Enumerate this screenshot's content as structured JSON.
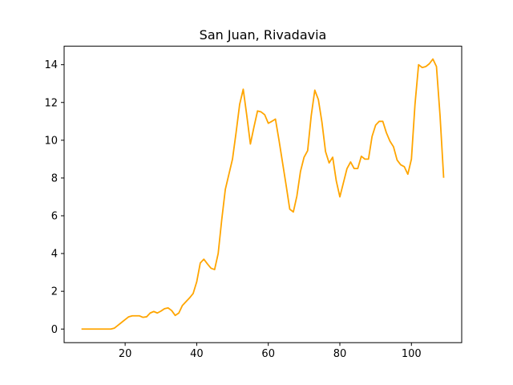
{
  "chart_data": {
    "type": "line",
    "title": "San Juan, Rivadavia",
    "xlabel": "",
    "ylabel": "",
    "xlim": [
      2.95,
      114.05
    ],
    "ylim": [
      -0.72,
      14.98
    ],
    "xticks": [
      20,
      40,
      60,
      80,
      100
    ],
    "yticks": [
      0,
      2,
      4,
      6,
      8,
      10,
      12,
      14
    ],
    "grid": false,
    "line_color": "#ffa500",
    "series": [
      {
        "x": [
          8,
          9,
          10,
          11,
          12,
          13,
          14,
          15,
          16,
          17,
          18,
          19,
          20,
          21,
          22,
          23,
          24,
          25,
          26,
          27,
          28,
          29,
          30,
          31,
          32,
          33,
          34,
          35,
          36,
          37,
          38,
          39,
          40,
          41,
          42,
          43,
          44,
          45,
          46,
          47,
          48,
          49,
          50,
          51,
          52,
          53,
          54,
          55,
          56,
          57,
          58,
          59,
          60,
          61,
          62,
          63,
          64,
          65,
          66,
          67,
          68,
          69,
          70,
          71,
          72,
          73,
          74,
          75,
          76,
          77,
          78,
          79,
          80,
          81,
          82,
          83,
          84,
          85,
          86,
          87,
          88,
          89,
          90,
          91,
          92,
          93,
          94,
          95,
          96,
          97,
          98,
          99,
          100,
          101,
          102,
          103,
          104,
          105,
          106,
          107,
          108,
          109
        ],
        "y": [
          0,
          0,
          0,
          0,
          0,
          0,
          0,
          0,
          0,
          0.05,
          0.2,
          0.35,
          0.5,
          0.65,
          0.7,
          0.7,
          0.7,
          0.62,
          0.65,
          0.85,
          0.93,
          0.85,
          0.95,
          1.08,
          1.12,
          0.98,
          0.72,
          0.85,
          1.25,
          1.45,
          1.65,
          1.88,
          2.5,
          3.5,
          3.7,
          3.45,
          3.22,
          3.15,
          4.0,
          5.8,
          7.4,
          8.2,
          9.0,
          10.4,
          11.9,
          12.7,
          11.3,
          9.8,
          10.7,
          11.55,
          11.5,
          11.35,
          10.9,
          11.0,
          11.12,
          10.0,
          8.8,
          7.6,
          6.35,
          6.2,
          7.05,
          8.35,
          9.1,
          9.45,
          11.3,
          12.65,
          12.15,
          10.95,
          9.4,
          8.8,
          9.1,
          7.85,
          7.0,
          7.75,
          8.5,
          8.85,
          8.5,
          8.5,
          9.15,
          9.0,
          9.0,
          10.2,
          10.8,
          11.0,
          11.0,
          10.4,
          9.95,
          9.65,
          8.95,
          8.7,
          8.6,
          8.2,
          9.0,
          11.9,
          14.0,
          13.85,
          13.9,
          14.05,
          14.3,
          13.9,
          11.3,
          8.05
        ]
      }
    ]
  }
}
